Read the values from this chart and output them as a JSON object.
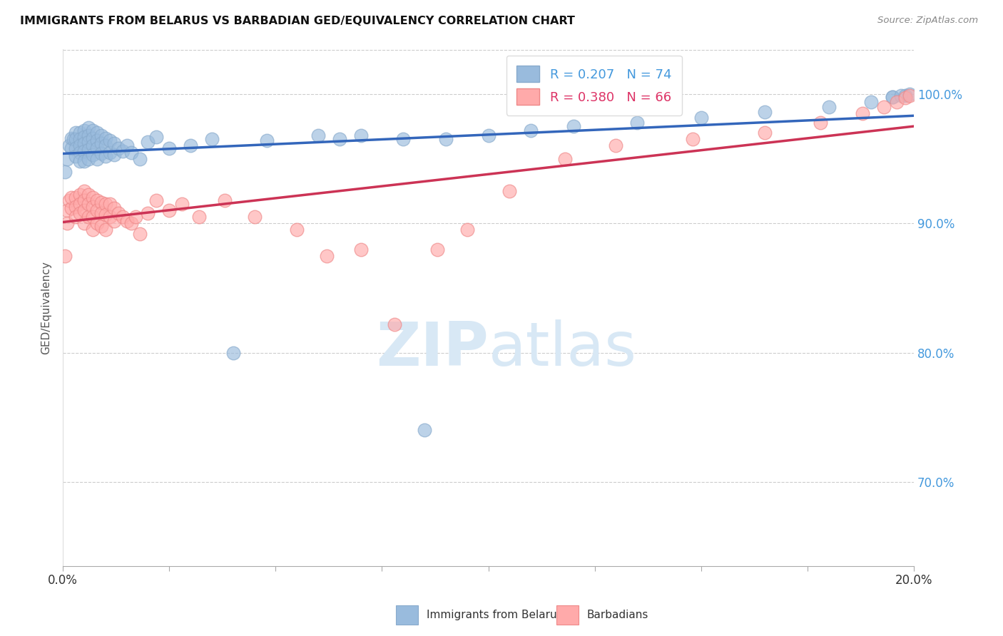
{
  "title": "IMMIGRANTS FROM BELARUS VS BARBADIAN GED/EQUIVALENCY CORRELATION CHART",
  "source": "Source: ZipAtlas.com",
  "ylabel": "GED/Equivalency",
  "yticks_labels": [
    "70.0%",
    "80.0%",
    "90.0%",
    "100.0%"
  ],
  "ytick_vals": [
    0.7,
    0.8,
    0.9,
    1.0
  ],
  "xlim": [
    0.0,
    0.2
  ],
  "ylim": [
    0.635,
    1.035
  ],
  "legend1_r": "0.207",
  "legend1_n": "74",
  "legend2_r": "0.380",
  "legend2_n": "66",
  "blue_color": "#99BBDD",
  "pink_color": "#FFAAAA",
  "blue_edge": "#88AACC",
  "pink_edge": "#EE8888",
  "trendline_blue": "#3366BB",
  "trendline_pink": "#CC3355",
  "watermark_color": "#D8E8F5",
  "blue_x": [
    0.0005,
    0.001,
    0.0015,
    0.002,
    0.002,
    0.0025,
    0.003,
    0.003,
    0.003,
    0.003,
    0.004,
    0.004,
    0.004,
    0.004,
    0.004,
    0.005,
    0.005,
    0.005,
    0.005,
    0.005,
    0.006,
    0.006,
    0.006,
    0.006,
    0.006,
    0.007,
    0.007,
    0.007,
    0.007,
    0.008,
    0.008,
    0.008,
    0.008,
    0.009,
    0.009,
    0.009,
    0.01,
    0.01,
    0.01,
    0.011,
    0.011,
    0.012,
    0.012,
    0.013,
    0.014,
    0.015,
    0.016,
    0.018,
    0.02,
    0.022,
    0.025,
    0.03,
    0.035,
    0.04,
    0.048,
    0.06,
    0.065,
    0.07,
    0.08,
    0.085,
    0.09,
    0.1,
    0.11,
    0.12,
    0.135,
    0.15,
    0.165,
    0.18,
    0.19,
    0.195,
    0.195,
    0.197,
    0.198,
    0.199
  ],
  "blue_y": [
    0.94,
    0.95,
    0.96,
    0.966,
    0.958,
    0.965,
    0.97,
    0.965,
    0.958,
    0.952,
    0.97,
    0.965,
    0.96,
    0.955,
    0.948,
    0.972,
    0.967,
    0.962,
    0.956,
    0.948,
    0.974,
    0.968,
    0.963,
    0.957,
    0.95,
    0.972,
    0.966,
    0.96,
    0.953,
    0.97,
    0.964,
    0.958,
    0.95,
    0.968,
    0.962,
    0.954,
    0.966,
    0.96,
    0.952,
    0.964,
    0.955,
    0.962,
    0.953,
    0.958,
    0.956,
    0.96,
    0.955,
    0.95,
    0.963,
    0.967,
    0.958,
    0.96,
    0.965,
    0.8,
    0.964,
    0.968,
    0.965,
    0.968,
    0.965,
    0.74,
    0.965,
    0.968,
    0.972,
    0.975,
    0.978,
    0.982,
    0.986,
    0.99,
    0.994,
    0.998,
    0.998,
    0.999,
    0.999,
    1.0
  ],
  "pink_x": [
    0.0005,
    0.001,
    0.001,
    0.0015,
    0.002,
    0.002,
    0.003,
    0.003,
    0.003,
    0.004,
    0.004,
    0.004,
    0.005,
    0.005,
    0.005,
    0.005,
    0.006,
    0.006,
    0.006,
    0.007,
    0.007,
    0.007,
    0.007,
    0.008,
    0.008,
    0.008,
    0.009,
    0.009,
    0.009,
    0.01,
    0.01,
    0.01,
    0.011,
    0.011,
    0.012,
    0.012,
    0.013,
    0.014,
    0.015,
    0.016,
    0.017,
    0.018,
    0.02,
    0.022,
    0.025,
    0.028,
    0.032,
    0.038,
    0.045,
    0.055,
    0.062,
    0.07,
    0.078,
    0.088,
    0.095,
    0.105,
    0.118,
    0.13,
    0.148,
    0.165,
    0.178,
    0.188,
    0.193,
    0.196,
    0.198,
    0.199
  ],
  "pink_y": [
    0.875,
    0.91,
    0.9,
    0.918,
    0.912,
    0.92,
    0.92,
    0.913,
    0.905,
    0.922,
    0.915,
    0.908,
    0.925,
    0.918,
    0.91,
    0.9,
    0.922,
    0.915,
    0.905,
    0.92,
    0.913,
    0.905,
    0.895,
    0.918,
    0.91,
    0.9,
    0.916,
    0.908,
    0.898,
    0.915,
    0.907,
    0.895,
    0.915,
    0.905,
    0.912,
    0.902,
    0.908,
    0.905,
    0.902,
    0.9,
    0.905,
    0.892,
    0.908,
    0.918,
    0.91,
    0.915,
    0.905,
    0.918,
    0.905,
    0.895,
    0.875,
    0.88,
    0.822,
    0.88,
    0.895,
    0.925,
    0.95,
    0.96,
    0.965,
    0.97,
    0.978,
    0.985,
    0.99,
    0.994,
    0.997,
    0.999
  ]
}
